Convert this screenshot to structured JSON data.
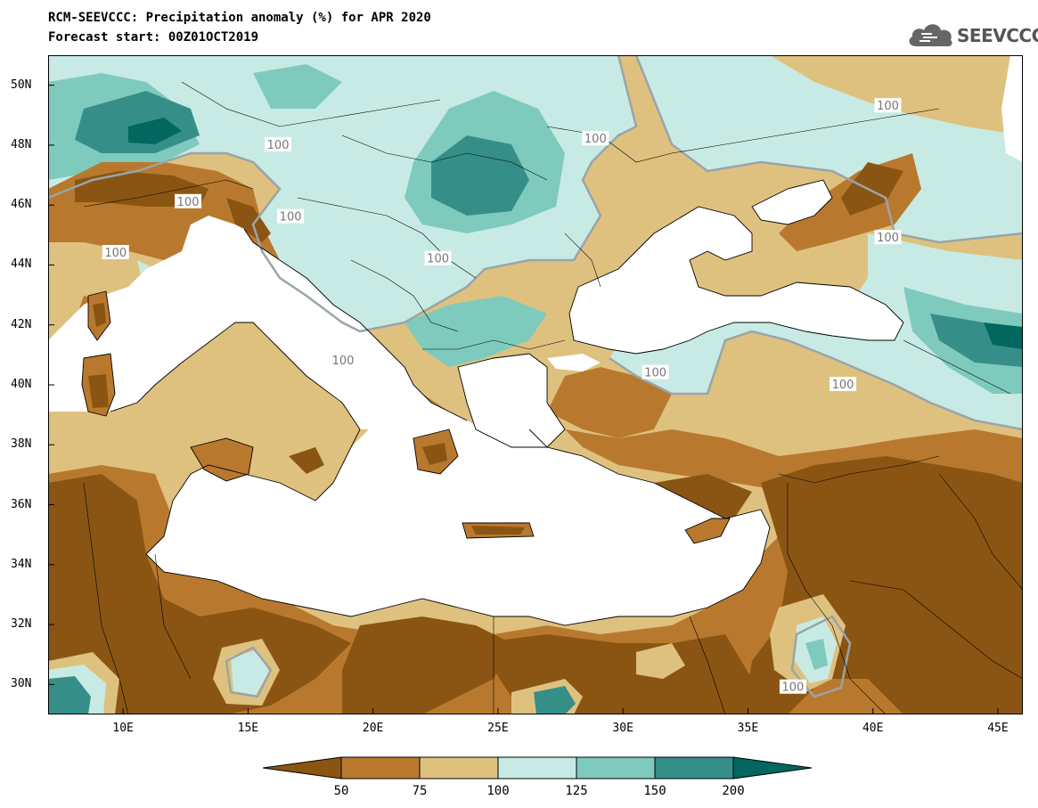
{
  "title_line1": "RCM-SEEVCCC: Precipitation anomaly (%) for APR 2020",
  "title_line2": "Forecast start: 00Z01OCT2019",
  "logo": {
    "text": "SEEVCCC",
    "icon": "cloud-logo-icon"
  },
  "map": {
    "lon_range": [
      7,
      46
    ],
    "lat_range": [
      29,
      51
    ],
    "x_ticks": [
      {
        "value": 10,
        "label": "10E"
      },
      {
        "value": 15,
        "label": "15E"
      },
      {
        "value": 20,
        "label": "20E"
      },
      {
        "value": 25,
        "label": "25E"
      },
      {
        "value": 30,
        "label": "30E"
      },
      {
        "value": 35,
        "label": "35E"
      },
      {
        "value": 40,
        "label": "40E"
      },
      {
        "value": 45,
        "label": "45E"
      }
    ],
    "y_ticks": [
      {
        "value": 50,
        "label": "50N"
      },
      {
        "value": 48,
        "label": "48N"
      },
      {
        "value": 46,
        "label": "46N"
      },
      {
        "value": 44,
        "label": "44N"
      },
      {
        "value": 42,
        "label": "42N"
      },
      {
        "value": 40,
        "label": "40N"
      },
      {
        "value": 38,
        "label": "38N"
      },
      {
        "value": 36,
        "label": "36N"
      },
      {
        "value": 34,
        "label": "34N"
      },
      {
        "value": 32,
        "label": "32N"
      },
      {
        "value": 30,
        "label": "30N"
      }
    ],
    "contour_labels": [
      {
        "text": "100",
        "lon": 28.9,
        "lat": 48.2
      },
      {
        "text": "100",
        "lon": 40.6,
        "lat": 49.3
      },
      {
        "text": "100",
        "lon": 40.6,
        "lat": 44.9
      },
      {
        "text": "100",
        "lon": 12.6,
        "lat": 46.1
      },
      {
        "text": "100",
        "lon": 16.7,
        "lat": 45.6
      },
      {
        "text": "100",
        "lon": 16.2,
        "lat": 48.0
      },
      {
        "text": "100",
        "lon": 9.7,
        "lat": 44.4
      },
      {
        "text": "100",
        "lon": 22.6,
        "lat": 44.2
      },
      {
        "text": "100",
        "lon": 18.8,
        "lat": 40.8
      },
      {
        "text": "100",
        "lon": 31.3,
        "lat": 40.4
      },
      {
        "text": "100",
        "lon": 38.8,
        "lat": 40.0
      },
      {
        "text": "100",
        "lon": 36.8,
        "lat": 29.9
      }
    ]
  },
  "colorbar": {
    "levels": [
      "50",
      "75",
      "100",
      "125",
      "150",
      "200"
    ],
    "colors": [
      "#8a5513",
      "#b8792e",
      "#dfc17f",
      "#c7ebe4",
      "#7ecbbd",
      "#358f88",
      "#01675f"
    ]
  },
  "palette": {
    "sea": "#ffffff",
    "contour_line": "#9aa4a8"
  }
}
